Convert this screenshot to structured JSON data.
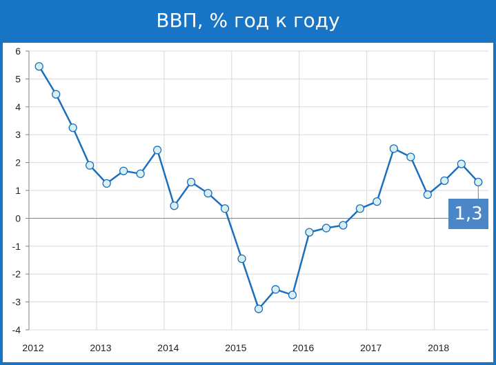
{
  "title": "ВВП, % год к году",
  "chart_data": {
    "type": "line",
    "title": "ВВП, % год к году",
    "xlabel": "",
    "ylabel": "",
    "ylim": [
      -4,
      6
    ],
    "xlim": [
      2012,
      2018.8
    ],
    "y_ticks": [
      "6",
      "5",
      "4",
      "3",
      "2",
      "1",
      "0",
      "-1",
      "-2",
      "-3",
      "-4"
    ],
    "x_ticks": [
      "2012",
      "2013",
      "2014",
      "2015",
      "2016",
      "2017",
      "2018"
    ],
    "grid": true,
    "series_color": "#1a6fbd",
    "marker_fill": "#d8f0f2",
    "x": [
      2012.15,
      2012.4,
      2012.65,
      2012.9,
      2013.15,
      2013.4,
      2013.65,
      2013.9,
      2014.15,
      2014.4,
      2014.65,
      2014.9,
      2015.15,
      2015.4,
      2015.65,
      2015.9,
      2016.15,
      2016.4,
      2016.65,
      2016.9,
      2017.15,
      2017.4,
      2017.65,
      2017.9,
      2018.15,
      2018.4,
      2018.65
    ],
    "series": [
      {
        "values": [
          5.45,
          4.45,
          3.25,
          1.9,
          1.25,
          1.7,
          1.6,
          2.45,
          0.45,
          1.3,
          0.9,
          0.35,
          -1.45,
          -3.25,
          -2.55,
          -2.75,
          -0.5,
          -0.35,
          -0.25,
          0.35,
          0.6,
          2.5,
          2.2,
          0.85,
          1.35,
          1.95,
          1.3
        ]
      }
    ],
    "callout": "1,3"
  }
}
